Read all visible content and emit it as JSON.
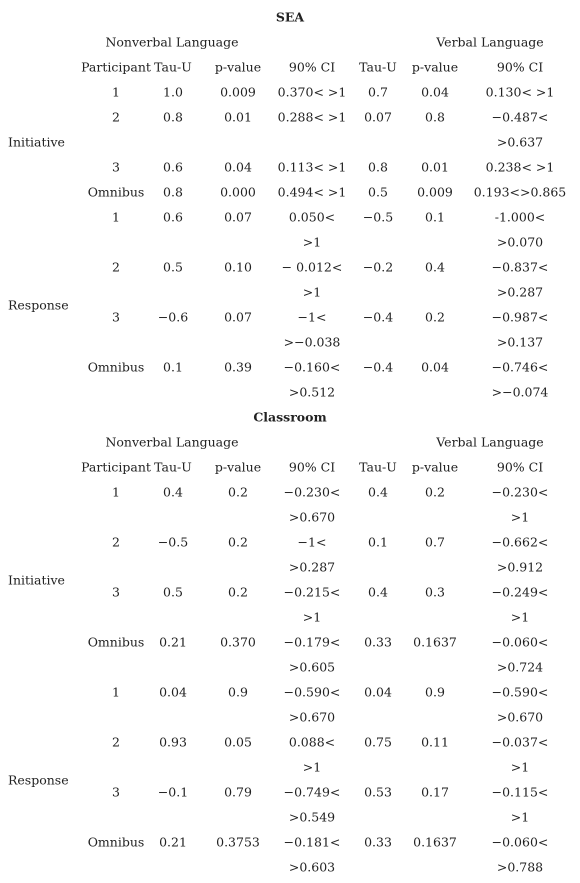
{
  "sections": [
    {
      "title": "SEA",
      "groups": [
        "Nonverbal Language",
        "Verbal Language"
      ],
      "header": [
        "Participant",
        "Tau-U",
        "p-value",
        "90% CI",
        "Tau-U",
        "p-value",
        "90% CI"
      ],
      "blocks": [
        {
          "label": "Initiative",
          "rows": [
            [
              "1",
              "1.0",
              "0.009",
              "0.370< >1",
              "0.7",
              "0.04",
              "0.130< >1"
            ],
            [
              "2",
              "0.8",
              "0.01",
              "0.288< >1",
              "0.07",
              "0.8",
              [
                "−0.487<",
                ">0.637"
              ]
            ],
            [
              "3",
              "0.6",
              "0.04",
              "0.113< >1",
              "0.8",
              "0.01",
              "0.238< >1"
            ],
            [
              "Omnibus",
              "0.8",
              "0.000",
              "0.494< >1",
              "0.5",
              "0.009",
              "0.193<>0.865"
            ]
          ]
        },
        {
          "label": "Response",
          "rows": [
            [
              "1",
              "0.6",
              "0.07",
              [
                "0.050<",
                ">1"
              ],
              "−0.5",
              "0.1",
              [
                "-1.000<",
                ">0.070"
              ]
            ],
            [
              "2",
              "0.5",
              "0.10",
              [
                "− 0.012<",
                ">1"
              ],
              "−0.2",
              "0.4",
              [
                "−0.837<",
                ">0.287"
              ]
            ],
            [
              "3",
              "−0.6",
              "0.07",
              [
                "−1<",
                ">−0.038"
              ],
              "−0.4",
              "0.2",
              [
                "−0.987<",
                ">0.137"
              ]
            ],
            [
              "Omnibus",
              "0.1",
              "0.39",
              [
                "−0.160<",
                ">0.512"
              ],
              "−0.4",
              "0.04",
              [
                "−0.746<",
                ">−0.074"
              ]
            ]
          ]
        }
      ]
    },
    {
      "title": "Classroom",
      "groups": [
        "Nonverbal Language",
        "Verbal Language"
      ],
      "header": [
        "Participant",
        "Tau-U",
        "p-value",
        "90% CI",
        "Tau-U",
        "p-value",
        "90% CI"
      ],
      "blocks": [
        {
          "label": "Initiative",
          "rows": [
            [
              "1",
              "0.4",
              "0.2",
              [
                "−0.230<",
                ">0.670"
              ],
              "0.4",
              "0.2",
              [
                "−0.230<",
                ">1"
              ]
            ],
            [
              "2",
              "−0.5",
              "0.2",
              [
                "−1<",
                ">0.287"
              ],
              "0.1",
              "0.7",
              [
                "−0.662<",
                ">0.912"
              ]
            ],
            [
              "3",
              "0.5",
              "0.2",
              [
                "−0.215<",
                ">1"
              ],
              "0.4",
              "0.3",
              [
                "−0.249<",
                ">1"
              ]
            ],
            [
              "Omnibus",
              "0.21",
              "0.370",
              [
                "−0.179<",
                ">0.605"
              ],
              "0.33",
              "0.1637",
              [
                "−0.060<",
                ">0.724"
              ]
            ]
          ]
        },
        {
          "label": "Response",
          "rows": [
            [
              "1",
              "0.04",
              "0.9",
              [
                "−0.590<",
                ">0.670"
              ],
              "0.04",
              "0.9",
              [
                "−0.590<",
                ">0.670"
              ]
            ],
            [
              "2",
              "0.93",
              "0.05",
              [
                "0.088<",
                ">1"
              ],
              "0.75",
              "0.11",
              [
                "−0.037<",
                ">1"
              ]
            ],
            [
              "3",
              "−0.1",
              "0.79",
              [
                "−0.749<",
                ">0.549"
              ],
              "0.53",
              "0.17",
              [
                "−0.115<",
                ">1"
              ]
            ],
            [
              "Omnibus",
              "0.21",
              "0.3753",
              [
                "−0.181<",
                ">0.603"
              ],
              "0.33",
              "0.1637",
              [
                "−0.060<",
                ">0.788"
              ]
            ]
          ]
        }
      ]
    }
  ]
}
